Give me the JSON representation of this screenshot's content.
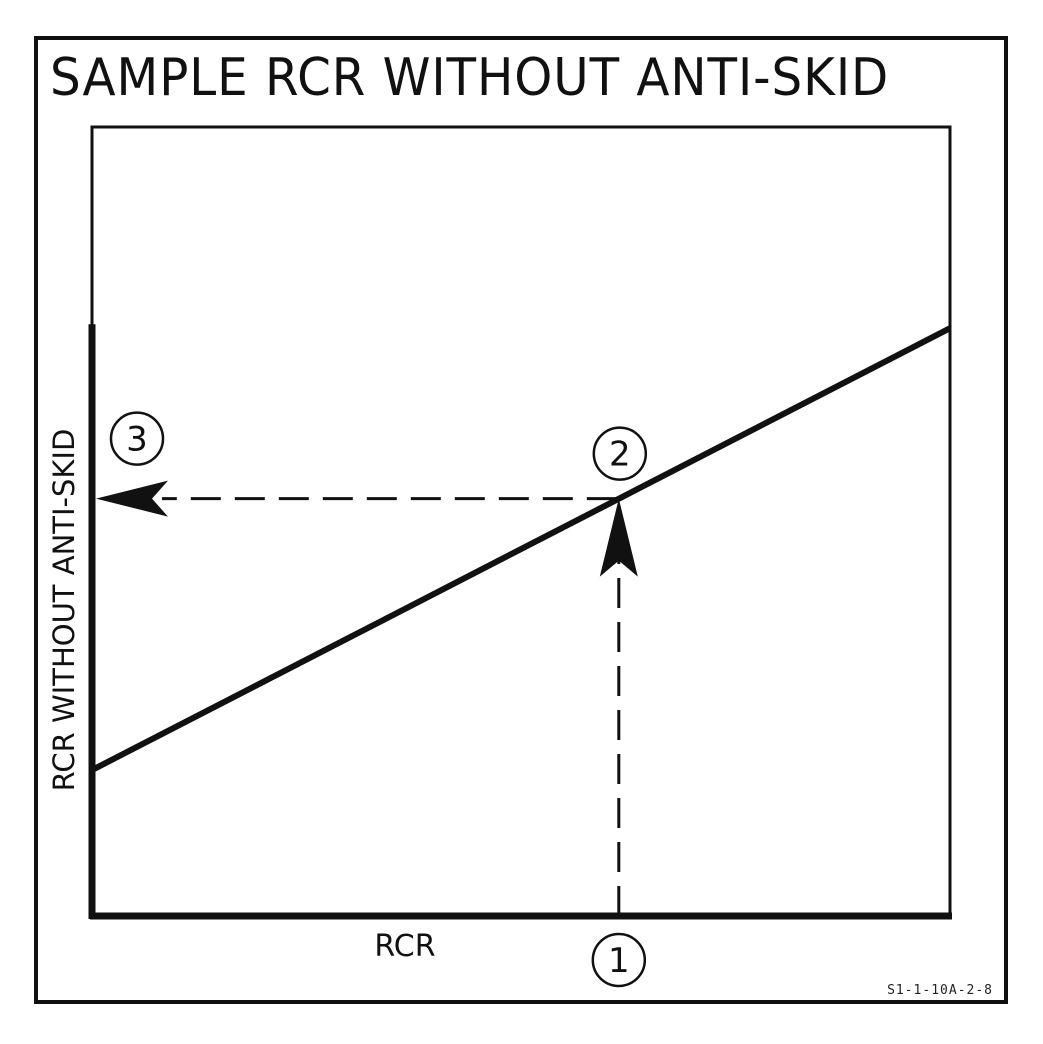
{
  "title": "SAMPLE RCR WITHOUT ANTI-SKID",
  "figure_id": "S1-1-10A-2-8",
  "chart_data": {
    "type": "line",
    "title": "SAMPLE RCR WITHOUT ANTI-SKID",
    "xlabel": "RCR",
    "ylabel": "RCR WITHOUT ANTI-SKID",
    "xlim": [
      0,
      1
    ],
    "ylim": [
      0,
      1
    ],
    "grid": false,
    "series": [
      {
        "x": [
          0,
          1
        ],
        "y": [
          0.185,
          0.745
        ]
      }
    ],
    "annotations": [
      {
        "label": "1",
        "description": "entry point on RCR axis",
        "x": 0.614,
        "y": 0
      },
      {
        "label": "2",
        "description": "intersection with line",
        "x": 0.614,
        "y": 0.529
      },
      {
        "label": "3",
        "description": "read result on RCR WITHOUT ANTI-SKID axis",
        "x": 0,
        "y": 0.529
      }
    ]
  }
}
